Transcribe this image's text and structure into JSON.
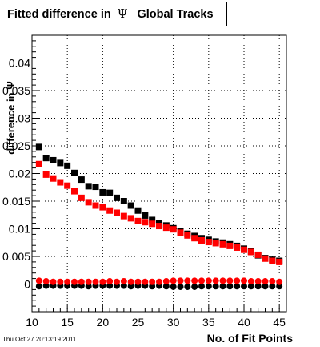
{
  "title": {
    "text": "Fitted difference in",
    "symbol": "Ψ",
    "suffix": "Global Tracks"
  },
  "footer": "Thu Oct 27 20:13:19 2011",
  "chart_data": {
    "type": "scatter",
    "title": "Fitted difference in Ψ Global Tracks",
    "xlabel": "No. of Fit Points",
    "ylabel": "difference in Ψ",
    "xlim": [
      10,
      46
    ],
    "ylim": [
      -0.005,
      0.045
    ],
    "xticks": [
      10,
      15,
      20,
      25,
      30,
      35,
      40,
      45
    ],
    "xtick_labels": [
      "10",
      "15",
      "20",
      "25",
      "30",
      "35",
      "40",
      "45"
    ],
    "yticks": [
      0,
      0.005,
      0.01,
      0.015,
      0.02,
      0.025,
      0.03,
      0.035,
      0.04
    ],
    "ytick_labels": [
      "0",
      "0.005",
      "0.01",
      "0.015",
      "0.02",
      "0.025",
      "0.03",
      "0.035",
      "0.04"
    ],
    "grid": true,
    "x": [
      11,
      12,
      13,
      14,
      15,
      16,
      17,
      18,
      19,
      20,
      21,
      22,
      23,
      24,
      25,
      26,
      27,
      28,
      29,
      30,
      31,
      32,
      33,
      34,
      35,
      36,
      37,
      38,
      39,
      40,
      41,
      42,
      43,
      44,
      45
    ],
    "series": [
      {
        "marker": "square",
        "color": "#000000",
        "values": [
          0.0248,
          0.0228,
          0.0224,
          0.0219,
          0.0214,
          0.0201,
          0.0189,
          0.0177,
          0.0176,
          0.0166,
          0.0165,
          0.0156,
          0.015,
          0.0142,
          0.0133,
          0.0124,
          0.0116,
          0.011,
          0.0106,
          0.0101,
          0.0096,
          0.0091,
          0.0087,
          0.0083,
          0.008,
          0.0077,
          0.0075,
          0.0072,
          0.0069,
          0.0064,
          0.0059,
          0.0052,
          0.0047,
          0.0044,
          0.0042
        ]
      },
      {
        "marker": "square",
        "color": "#ff0000",
        "values": [
          0.0217,
          0.0198,
          0.0191,
          0.0184,
          0.0178,
          0.0168,
          0.0156,
          0.0148,
          0.0142,
          0.0139,
          0.0133,
          0.0129,
          0.0123,
          0.0119,
          0.0114,
          0.0112,
          0.0109,
          0.0105,
          0.0102,
          0.0099,
          0.0093,
          0.0088,
          0.0083,
          0.0079,
          0.0076,
          0.0074,
          0.0072,
          0.0069,
          0.0066,
          0.0062,
          0.0058,
          0.0053,
          0.0046,
          0.0042,
          0.004
        ]
      },
      {
        "marker": "circle",
        "color": "#000000",
        "values": [
          -0.0004,
          -0.0003,
          -0.0003,
          -0.0003,
          -0.0003,
          -0.0003,
          -0.0003,
          -0.0004,
          -0.0003,
          -0.0003,
          -0.0003,
          -0.0003,
          -0.0003,
          -0.0004,
          -0.0003,
          -0.0003,
          -0.0004,
          -0.0003,
          -0.0004,
          -0.0005,
          -0.0005,
          -0.0005,
          -0.0005,
          -0.0004,
          -0.0004,
          -0.0004,
          -0.0004,
          -0.0004,
          -0.0004,
          -0.0004,
          -0.0004,
          -0.0004,
          -0.0004,
          -0.0004,
          -0.0004
        ]
      },
      {
        "marker": "circle",
        "color": "#ff0000",
        "values": [
          0.0006,
          0.0005,
          0.0004,
          0.0004,
          0.0004,
          0.0004,
          0.0004,
          0.0004,
          0.0004,
          0.0004,
          0.0005,
          0.0004,
          0.0005,
          0.0004,
          0.0004,
          0.0004,
          0.0004,
          0.0004,
          0.0005,
          0.0006,
          0.0006,
          0.0006,
          0.0006,
          0.0006,
          0.0006,
          0.0006,
          0.0006,
          0.0006,
          0.0006,
          0.0006,
          0.0005,
          0.0005,
          0.0005,
          0.0005,
          0.0004
        ]
      }
    ]
  }
}
